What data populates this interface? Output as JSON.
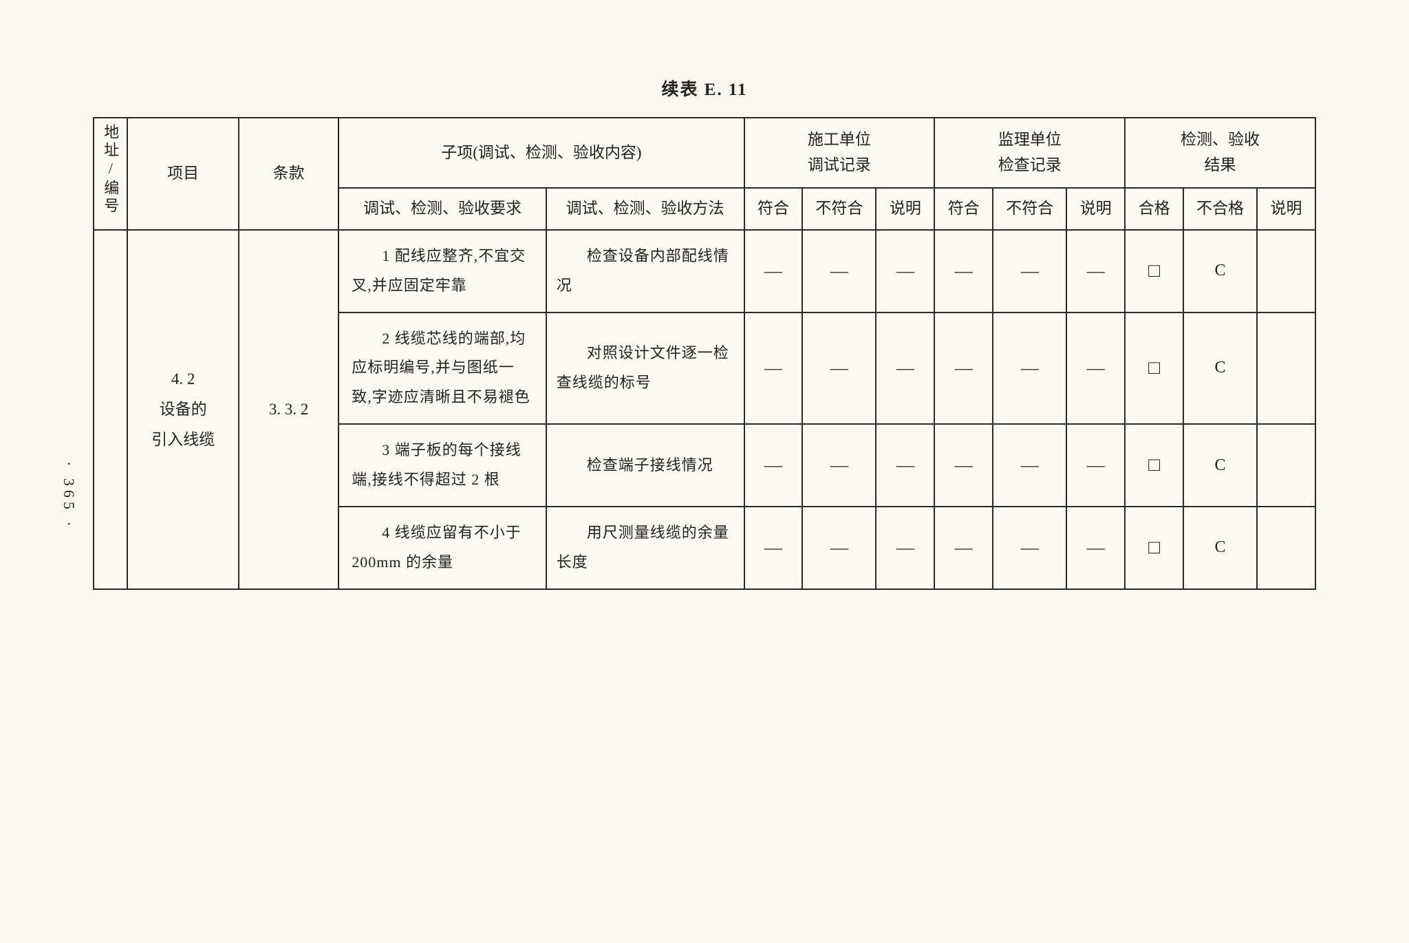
{
  "title": "续表 E. 11",
  "page_number": "· 365 ·",
  "table": {
    "border_color": "#2a2a2a",
    "background_color": "#fbf9f4",
    "text_color": "#222222",
    "columns": {
      "addr_header": "地址/编号",
      "project_header": "项目",
      "clause_header": "条款",
      "subitem_header": "子项(调试、检测、验收内容)",
      "req_subheader": "调试、检测、验收要求",
      "method_subheader": "调试、检测、验收方法",
      "construction_header": "施工单位\n调试记录",
      "supervision_header": "监理单位\n检查记录",
      "result_header": "检测、验收\n结果",
      "conform": "符合",
      "nonconform": "不符合",
      "explain": "说明",
      "pass": "合格",
      "fail": "不合格"
    },
    "project": "4. 2\n设备的\n引入线缆",
    "clause": "3. 3. 2",
    "rows": [
      {
        "req": "1 配线应整齐,不宜交叉,并应固定牢靠",
        "method": "检查设备内部配线情况",
        "construction": [
          "—",
          "—",
          "—"
        ],
        "supervision": [
          "—",
          "—",
          "—"
        ],
        "result_pass": "□",
        "result_fail": "C",
        "result_explain": ""
      },
      {
        "req": "2 线缆芯线的端部,均应标明编号,并与图纸一致,字迹应清晰且不易褪色",
        "method": "对照设计文件逐一检查线缆的标号",
        "construction": [
          "—",
          "—",
          "—"
        ],
        "supervision": [
          "—",
          "—",
          "—"
        ],
        "result_pass": "□",
        "result_fail": "C",
        "result_explain": ""
      },
      {
        "req": "3 端子板的每个接线端,接线不得超过 2 根",
        "method": "检查端子接线情况",
        "construction": [
          "—",
          "—",
          "—"
        ],
        "supervision": [
          "—",
          "—",
          "—"
        ],
        "result_pass": "□",
        "result_fail": "C",
        "result_explain": ""
      },
      {
        "req": "4 线缆应留有不小于 200mm 的余量",
        "method": "用尺测量线缆的余量长度",
        "construction": [
          "—",
          "—",
          "—"
        ],
        "supervision": [
          "—",
          "—",
          "—"
        ],
        "result_pass": "□",
        "result_fail": "C",
        "result_explain": ""
      }
    ]
  }
}
